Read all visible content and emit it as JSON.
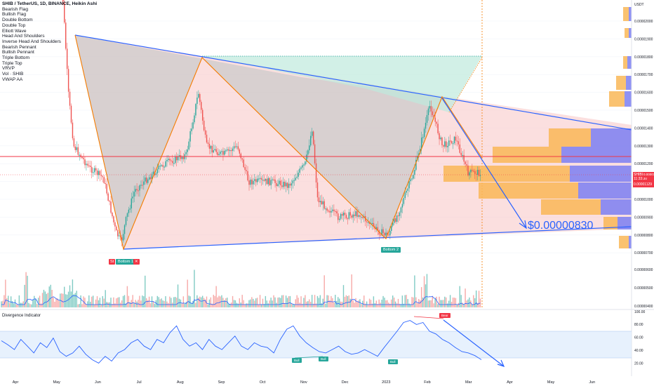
{
  "header": {
    "title": "SHIB / TetherUS, 1D, BINANCE, Heikin Ashi"
  },
  "legend_items": [
    "Bearish Flag",
    "Bullish Flag",
    "Double Bottom",
    "Double Top",
    "Elliott Wave",
    "Head And Shoulders",
    "Inverse Head And Shoulders",
    "Bearish Pennant",
    "Bullish Pennant",
    "Triple Bottom",
    "Triple Top",
    "VRVP",
    "Vol · SHIB",
    "VWAP AA"
  ],
  "price_axis": {
    "currency": "USDT",
    "ticks": [
      "0.00002000",
      "0.00001900",
      "0.00001800",
      "0.00001700",
      "0.00001600",
      "0.00001500",
      "0.00001400",
      "0.00001300",
      "0.00001200",
      "0.00001100",
      "0.00001000",
      "0.00000900",
      "0.00000800",
      "0.00000700"
    ],
    "volume_ticks": [
      "0.00000600",
      "0.00000500",
      "0.00000400"
    ]
  },
  "price_box": {
    "symbol": "SHIBUSDT",
    "last": "0.00001134",
    "countdown": "11:33:30",
    "second": "0.00001129"
  },
  "annotations": {
    "target": "$0.00000830",
    "bottom1": "Bottom 1",
    "bottom2": "Bottom 2",
    "small_tag": "St",
    "divergence_title": "Divergence Indicator",
    "bull1": "Bull",
    "bull2": "Bull",
    "bull3": "Bull",
    "bear": "Bear"
  },
  "indicator_axis": {
    "ticks": [
      "80.00",
      "60.00",
      "40.00",
      "20.00"
    ],
    "top": "100.00"
  },
  "time_axis": [
    "Apr",
    "May",
    "Jun",
    "Jul",
    "Aug",
    "Sep",
    "Oct",
    "Nov",
    "Dec",
    "2023",
    "Feb",
    "Mar",
    "Apr",
    "May",
    "Jun"
  ],
  "colors": {
    "up": "#26a69a",
    "down": "#ef5350",
    "trendline": "#2962ff",
    "pattern_line": "#f57c00",
    "horizontal": "#f23645",
    "rsi": "#2962ff"
  },
  "chart_data": {
    "type": "candlestick",
    "title": "SHIB / TetherUS, 1D, BINANCE, Heikin Ashi",
    "ylabel": "USDT",
    "y_scale": "linear",
    "ylim": [
      6.8e-06,
      2.13e-05
    ],
    "close_path": [
      [
        "2022-04-20",
        2.4e-05
      ],
      [
        "2022-05-06",
        2.13e-05
      ],
      [
        "2022-05-10",
        1.6e-05
      ],
      [
        "2022-05-14",
        1.3e-05
      ],
      [
        "2022-05-25",
        1.18e-05
      ],
      [
        "2022-06-05",
        1.12e-05
      ],
      [
        "2022-06-14",
        8.2e-06
      ],
      [
        "2022-06-18",
        7.6e-06
      ],
      [
        "2022-06-22",
        9e-06
      ],
      [
        "2022-06-28",
        1.05e-05
      ],
      [
        "2022-07-05",
        1.1e-05
      ],
      [
        "2022-07-20",
        1.2e-05
      ],
      [
        "2022-08-05",
        1.25e-05
      ],
      [
        "2022-08-14",
        1.6e-05
      ],
      [
        "2022-08-20",
        1.3e-05
      ],
      [
        "2022-09-01",
        1.25e-05
      ],
      [
        "2022-09-12",
        1.3e-05
      ],
      [
        "2022-09-20",
        1.1e-05
      ],
      [
        "2022-10-05",
        1.1e-05
      ],
      [
        "2022-10-20",
        1.08e-05
      ],
      [
        "2022-11-01",
        1.2e-05
      ],
      [
        "2022-11-06",
        1.4e-05
      ],
      [
        "2022-11-10",
        1e-05
      ],
      [
        "2022-11-25",
        9e-06
      ],
      [
        "2022-12-10",
        9.2e-06
      ],
      [
        "2022-12-25",
        8.2e-06
      ],
      [
        "2023-01-01",
        8e-06
      ],
      [
        "2023-01-10",
        9.5e-06
      ],
      [
        "2023-01-20",
        1.15e-05
      ],
      [
        "2023-02-01",
        1.53e-05
      ],
      [
        "2023-02-10",
        1.3e-05
      ],
      [
        "2023-02-20",
        1.34e-05
      ],
      [
        "2023-03-01",
        1.15e-05
      ]
    ],
    "pattern_points": [
      {
        "label": "Bottom 1",
        "date": "2022-06-18",
        "price": 7.2e-06
      },
      {
        "label": "Peak",
        "date": "2022-08-14",
        "price": 1.8e-05
      },
      {
        "label": "Bottom 2",
        "date": "2023-01-01",
        "price": 7.8e-06
      },
      {
        "label": "Peak",
        "date": "2023-02-01",
        "price": 1.57e-05
      }
    ],
    "horizontal_level": 1.24e-05,
    "target_price": 8.3e-06,
    "indicator": {
      "name": "Divergence Indicator",
      "ylim": [
        15,
        100
      ],
      "bands": [
        30,
        70
      ],
      "values": [
        58,
        52,
        45,
        60,
        50,
        40,
        55,
        48,
        62,
        42,
        35,
        40,
        50,
        38,
        30,
        25,
        35,
        28,
        40,
        45,
        55,
        60,
        50,
        45,
        60,
        55,
        70,
        80,
        60,
        50,
        55,
        45,
        60,
        50,
        45,
        55,
        65,
        50,
        45,
        55,
        50,
        48,
        40,
        60,
        75,
        80,
        65,
        55,
        48,
        42,
        40,
        45,
        50,
        42,
        38,
        40,
        45,
        40,
        35,
        48,
        60,
        72,
        85,
        88,
        82,
        85,
        72,
        68,
        60,
        55,
        48,
        42,
        40,
        36,
        30
      ]
    }
  }
}
